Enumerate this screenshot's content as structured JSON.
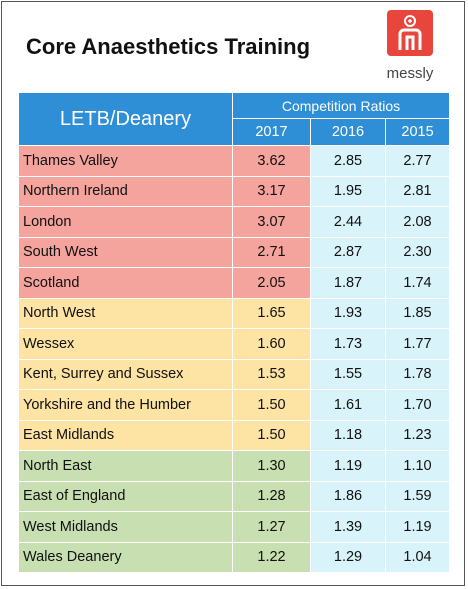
{
  "header": {
    "title": "Core Anaesthetics Training",
    "logo_text": "messly"
  },
  "table": {
    "name_header": "LETB/Deanery",
    "group_header": "Competition Ratios",
    "years": [
      "2017",
      "2016",
      "2015"
    ],
    "groups": [
      {
        "color": "#f4a49c",
        "rows": [
          [
            "Thames Valley",
            "3.62",
            "2.85",
            "2.77"
          ],
          [
            "Northern Ireland",
            "3.17",
            "1.95",
            "2.81"
          ],
          [
            "London",
            "3.07",
            "2.44",
            "2.08"
          ],
          [
            "South West",
            "2.71",
            "2.87",
            "2.30"
          ],
          [
            "Scotland",
            "2.05",
            "1.87",
            "1.74"
          ]
        ]
      },
      {
        "color": "#fde3a4",
        "rows": [
          [
            "North West",
            "1.65",
            "1.93",
            "1.85"
          ],
          [
            "Wessex",
            "1.60",
            "1.73",
            "1.77"
          ],
          [
            "Kent, Surrey and Sussex",
            "1.53",
            "1.55",
            "1.78"
          ],
          [
            "Yorkshire and the Humber",
            "1.50",
            "1.61",
            "1.70"
          ],
          [
            "East Midlands",
            "1.50",
            "1.18",
            "1.23"
          ]
        ]
      },
      {
        "color": "#c8dfb2",
        "rows": [
          [
            "North East",
            "1.30",
            "1.19",
            "1.10"
          ],
          [
            "East of England",
            "1.28",
            "1.86",
            "1.59"
          ],
          [
            "West Midlands",
            "1.27",
            "1.39",
            "1.19"
          ],
          [
            "Wales Deanery",
            "1.22",
            "1.29",
            "1.04"
          ]
        ]
      }
    ]
  }
}
